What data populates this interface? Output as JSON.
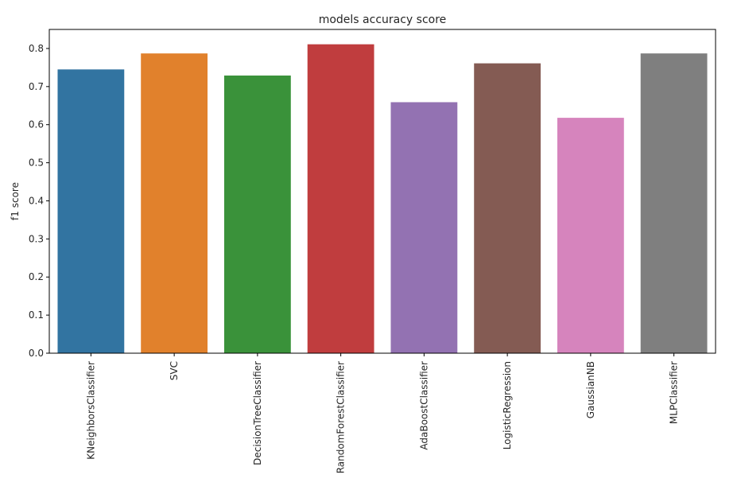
{
  "chart_data": {
    "type": "bar",
    "title": "models accuracy score",
    "xlabel": "",
    "ylabel": "f1 score",
    "categories": [
      "KNeighborsClassifier",
      "SVC",
      "DecisionTreeClassifier",
      "RandomForestClassifier",
      "AdaBoostClassifier",
      "LogisticRegression",
      "GaussianNB",
      "MLPClassifier"
    ],
    "values": [
      0.745,
      0.787,
      0.729,
      0.811,
      0.659,
      0.761,
      0.618,
      0.787
    ],
    "colors": [
      "#3274a1",
      "#e1812c",
      "#3a923a",
      "#c03d3e",
      "#9372b2",
      "#845b53",
      "#d684bd",
      "#7f7f7f"
    ],
    "ylim": [
      0,
      0.85
    ],
    "yticks": [
      "0.0",
      "0.1",
      "0.2",
      "0.3",
      "0.4",
      "0.5",
      "0.6",
      "0.7",
      "0.8"
    ],
    "grid": false,
    "x_tick_rotation": "vertical"
  }
}
